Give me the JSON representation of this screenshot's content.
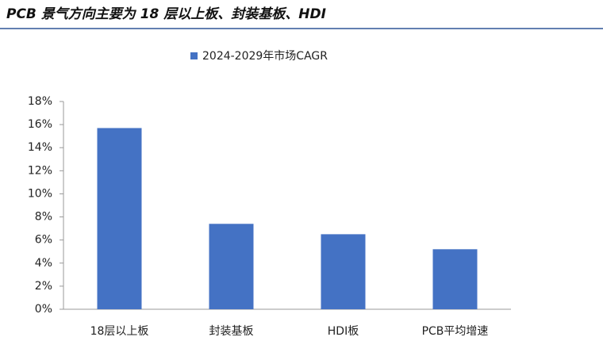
{
  "chart_data": {
    "type": "bar",
    "title": "PCB 景气方向主要为 18 层以上板、封装基板、HDI",
    "categories": [
      "18层以上板",
      "封装基板",
      "HDI板",
      "PCB平均增速"
    ],
    "series": [
      {
        "name": "2024-2029年市场CAGR",
        "color": "#4472c4",
        "values": [
          15.7,
          7.4,
          6.5,
          5.2
        ]
      }
    ],
    "ylim": [
      0,
      18
    ],
    "yticks": [
      {
        "value": 0,
        "label": "0%"
      },
      {
        "value": 2,
        "label": "2%"
      },
      {
        "value": 4,
        "label": "4%"
      },
      {
        "value": 6,
        "label": "6%"
      },
      {
        "value": 8,
        "label": "8%"
      },
      {
        "value": 10,
        "label": "10%"
      },
      {
        "value": 12,
        "label": "12%"
      },
      {
        "value": 14,
        "label": "14%"
      },
      {
        "value": 16,
        "label": "16%"
      },
      {
        "value": 18,
        "label": "18%"
      }
    ],
    "legend": "top"
  }
}
